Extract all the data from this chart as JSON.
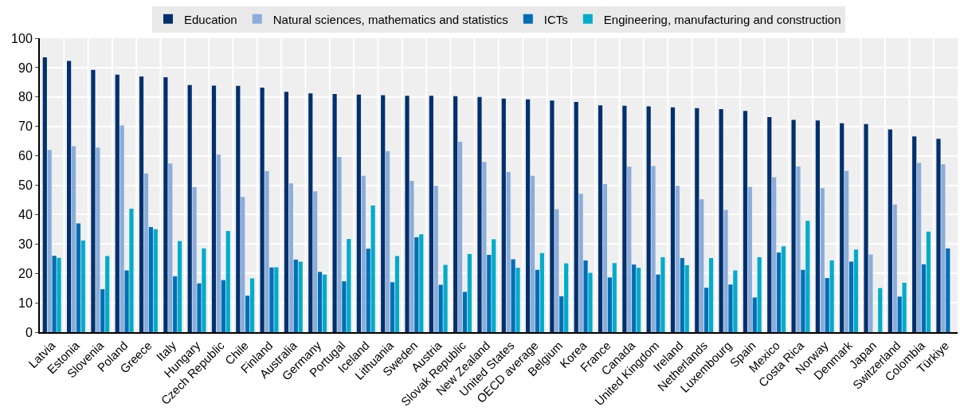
{
  "chart_data": {
    "type": "bar",
    "categories": [
      "Latvia",
      "Estonia",
      "Slovenia",
      "Poland",
      "Greece",
      "Italy",
      "Hungary",
      "Czech Republic",
      "Chile",
      "Finland",
      "Australia",
      "Germany",
      "Portugal",
      "Iceland",
      "Lithuania",
      "Sweden",
      "Austria",
      "Slovak Republic",
      "New Zealand",
      "United States",
      "OECD average",
      "Belgium",
      "Korea",
      "France",
      "Canada",
      "United Kingdom",
      "Ireland",
      "Netherlands",
      "Luxembourg",
      "Spain",
      "Mexico",
      "Costa Rica",
      "Norway",
      "Denmark",
      "Japan",
      "Switzerland",
      "Colombia",
      "Türkiye"
    ],
    "series": [
      {
        "name": "Education",
        "color": "#00306e",
        "values": [
          93.5,
          92.3,
          89.2,
          87.6,
          87,
          86.7,
          84.1,
          83.9,
          83.8,
          83.2,
          81.8,
          81.2,
          81,
          80.8,
          80.6,
          80.4,
          80.4,
          80.3,
          80,
          79.5,
          79.2,
          78.8,
          78.3,
          77.2,
          77,
          76.8,
          76.5,
          76.2,
          75.9,
          75.3,
          73.2,
          72.2,
          72,
          71.1,
          70.8,
          69,
          66.6,
          65.8
        ]
      },
      {
        "name": "Natural sciences, mathematics and statistics",
        "color": "#8aadda",
        "values": [
          62,
          63.3,
          62.8,
          70.3,
          54,
          57.4,
          49.3,
          60.4,
          46,
          54.8,
          50.6,
          47.9,
          59.6,
          53.2,
          61.6,
          51.5,
          49.8,
          64.8,
          57.9,
          54.5,
          53.2,
          41.9,
          47.1,
          50.4,
          56.3,
          56.5,
          49.8,
          45.2,
          41.6,
          49.4,
          52.7,
          56.4,
          49,
          54.9,
          26.4,
          43.4,
          57.6,
          57.1
        ]
      },
      {
        "name": "ICTs",
        "color": "#006eb6",
        "values": [
          26,
          37,
          14.6,
          21,
          35.8,
          19,
          16.6,
          17.7,
          12.4,
          22,
          24.7,
          20.5,
          17.3,
          28.4,
          17,
          32.3,
          16.1,
          13.7,
          26.3,
          24.8,
          21.2,
          12.2,
          24.4,
          18.6,
          23,
          19.6,
          25.2,
          15.1,
          16.2,
          11.8,
          27.1,
          21.2,
          18.4,
          24,
          null,
          12.1,
          23.1,
          28.5
        ]
      },
      {
        "name": "Engineering, manufacturing and construction",
        "color": "#00acca",
        "values": [
          25.3,
          31.2,
          25.9,
          42,
          35,
          31,
          28.5,
          34.4,
          18.3,
          22.1,
          24,
          19.6,
          31.7,
          43.1,
          25.9,
          33.3,
          22.9,
          26.6,
          31.6,
          21.9,
          26.9,
          23.4,
          20.2,
          23.5,
          21.9,
          25.5,
          22.8,
          25.2,
          21,
          25.5,
          29.2,
          37.9,
          24.4,
          28.1,
          15,
          16.8,
          34.2,
          null
        ]
      }
    ],
    "ylim": [
      0,
      100
    ],
    "yticks": [
      0,
      10,
      20,
      30,
      40,
      50,
      60,
      70,
      80,
      90,
      100
    ],
    "grid": true,
    "legend": "top"
  }
}
